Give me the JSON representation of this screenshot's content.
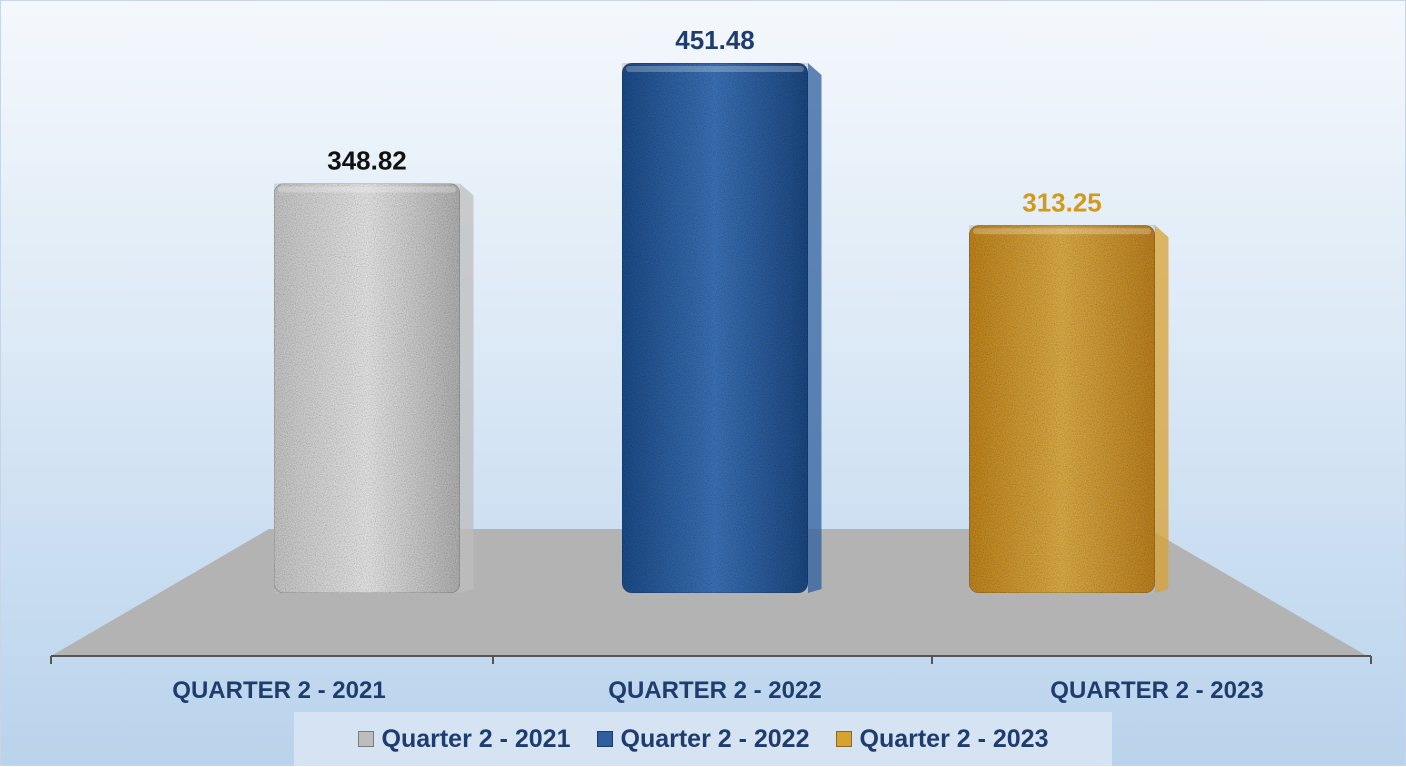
{
  "chart_data": {
    "type": "bar",
    "title": "",
    "xlabel": "",
    "ylabel": "",
    "categories": [
      "QUARTER 2 - 2021",
      "QUARTER 2 - 2022",
      "QUARTER 2 - 2023"
    ],
    "values": [
      348.82,
      451.48,
      313.25
    ],
    "value_labels": [
      "348.82",
      "451.48",
      "313.25"
    ],
    "ylim": [
      0,
      451.48
    ],
    "grid": false,
    "legend": {
      "placement": "bottom",
      "entries": [
        "Quarter 2 - 2021",
        "Quarter 2 - 2022",
        "Quarter 2 - 2023"
      ]
    }
  },
  "colors": {
    "bars": [
      "#bdbdbd",
      "#2d5e9e",
      "#d8a233"
    ],
    "value_labels": [
      "#111111",
      "#1f3c6e",
      "#d39a17"
    ],
    "category_text": "#1f3c6e",
    "floor": "#b3b3b3"
  }
}
